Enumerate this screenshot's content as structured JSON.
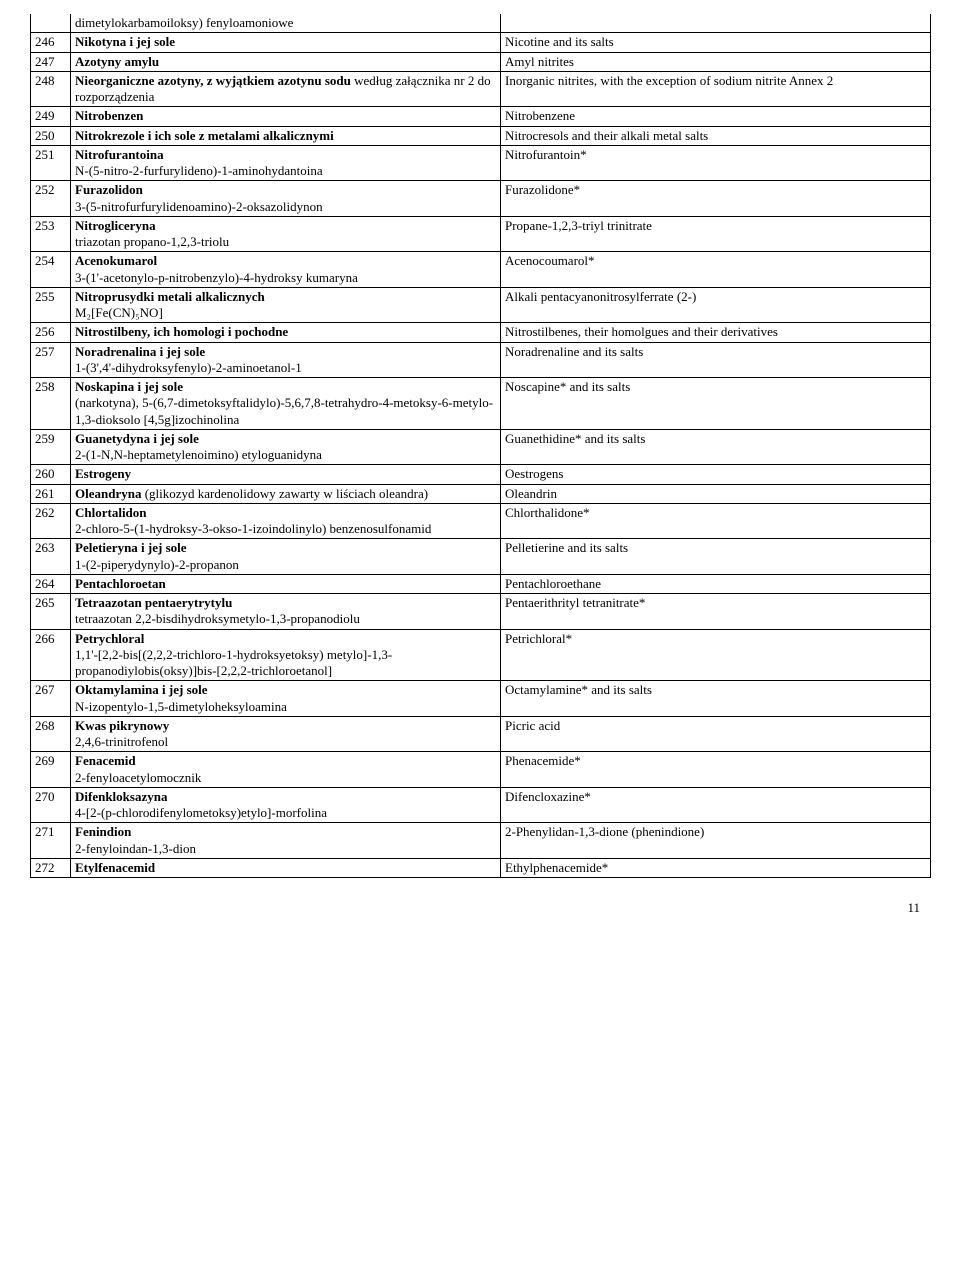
{
  "page_number": "11",
  "rows": [
    {
      "n": "",
      "pl_bold": "",
      "pl_rest": "dimetylokarbamoiloksy) fenyloamoniowe",
      "en": "",
      "no_top": true
    },
    {
      "n": "246",
      "pl_bold": "Nikotyna i jej sole",
      "pl_rest": "",
      "en": "Nicotine and its salts"
    },
    {
      "n": "247",
      "pl_bold": "Azotyny amylu",
      "pl_rest": "",
      "en": "Amyl nitrites"
    },
    {
      "n": "248",
      "pl_bold": "Nieorganiczne azotyny, z wyjątkiem azotynu sodu",
      "pl_rest": " według załącznika nr 2 do rozporządzenia",
      "en": "Inorganic nitrites, with the exception of sodium nitrite Annex 2"
    },
    {
      "n": "249",
      "pl_bold": "Nitrobenzen",
      "pl_rest": "",
      "en": "Nitrobenzene"
    },
    {
      "n": "250",
      "pl_bold": "Nitrokrezole i ich sole z metalami alkalicznymi",
      "pl_rest": "",
      "en": "Nitrocresols and their alkali metal salts"
    },
    {
      "n": "251",
      "pl_bold": "Nitrofurantoina",
      "pl_rest": "\n N-(5-nitro-2-furfurylideno)-1-aminohydantoina",
      "en": "Nitrofurantoin*"
    },
    {
      "n": "252",
      "pl_bold": "Furazolidon",
      "pl_rest": "\n 3-(5-nitrofurfurylidenoamino)-2-oksazolidynon",
      "en": "Furazolidone*"
    },
    {
      "n": "253",
      "pl_bold": "Nitrogliceryna",
      "pl_rest": "\n triazotan propano-1,2,3-triolu",
      "en": "Propane-1,2,3-triyl trinitrate"
    },
    {
      "n": "254",
      "pl_bold": "Acenokumarol",
      "pl_rest": "\n 3-(1'-acetonylo-p-nitrobenzylo)-4-hydroksy kumaryna",
      "en": "Acenocoumarol*"
    },
    {
      "n": "255",
      "pl_bold": "Nitroprusydki metali alkalicznych",
      "pl_rest": "\n M₂[Fe(CN)₅NO]",
      "en": "Alkali pentacyanonitrosylferrate (2-)"
    },
    {
      "n": "256",
      "pl_bold": "Nitrostilbeny, ich homologi i pochodne",
      "pl_rest": "",
      "en": "Nitrostilbenes, their homolgues and their derivatives"
    },
    {
      "n": "257",
      "pl_bold": "Noradrenalina i jej  sole",
      "pl_rest": "\n 1-(3',4'-dihydroksyfenylo)-2-aminoetanol-1",
      "en": "Noradrenaline and its salts"
    },
    {
      "n": "258",
      "pl_bold": "Noskapina i jej sole",
      "pl_rest": "\n (narkotyna), 5-(6,7-dimetoksyftalidylo)-5,6,7,8-tetrahydro-4-metoksy-6-metylo-1,3-dioksolo [4,5g]izochinolina",
      "en": "Noscapine* and its salts"
    },
    {
      "n": "259",
      "pl_bold": "Guanetydyna i jej  sole",
      "pl_rest": "\n 2-(1-N,N-heptametylenoimino) etyloguanidyna",
      "en": "Guanethidine* and its salts"
    },
    {
      "n": "260",
      "pl_bold": "Estrogeny",
      "pl_rest": "",
      "en": "Oestrogens"
    },
    {
      "n": "261",
      "pl_bold": "Oleandryna",
      "pl_rest": " (glikozyd kardenolidowy zawarty w liściach oleandra)",
      "en": "Oleandrin"
    },
    {
      "n": "262",
      "pl_bold": "Chlortalidon",
      "pl_rest": "\n 2-chloro-5-(1-hydroksy-3-okso-1-izoindolinylo) benzenosulfonamid",
      "en": "Chlorthalidone*"
    },
    {
      "n": "263",
      "pl_bold": "Peletieryna i jej  sole",
      "pl_rest": "\n 1-(2-piperydynylo)-2-propanon",
      "en": "Pelletierine and its salts"
    },
    {
      "n": "264",
      "pl_bold": "Pentachloroetan",
      "pl_rest": "",
      "en": "Pentachloroethane"
    },
    {
      "n": "265",
      "pl_bold": "Tetraazotan pentaerytrytylu",
      "pl_rest": "\n tetraazotan 2,2-bisdihydroksymetylo-1,3-propanodiolu",
      "en": "Pentaerithrityl tetranitrate*"
    },
    {
      "n": "266",
      "pl_bold": "Petrychloral",
      "pl_rest": "\n 1,1'-[2,2-bis[(2,2,2-trichloro-1-hydroksyetoksy) metylo]-1,3-propanodiylobis(oksy)]bis-[2,2,2-trichloroetanol]",
      "en": "Petrichloral*"
    },
    {
      "n": "267",
      "pl_bold": "Oktamylamina i jej sole",
      "pl_rest": "\n N-izopentylo-1,5-dimetyloheksyloamina",
      "en": "Octamylamine* and its salts"
    },
    {
      "n": "268",
      "pl_bold": "Kwas pikrynowy",
      "pl_rest": "\n 2,4,6-trinitrofenol",
      "en": "Picric acid"
    },
    {
      "n": "269",
      "pl_bold": "Fenacemid",
      "pl_rest": "\n 2-fenyloacetylomocznik",
      "en": "Phenacemide*"
    },
    {
      "n": "270",
      "pl_bold": "Difenkloksazyna",
      "pl_rest": "\n 4-[2-(p-chlorodifenylometoksy)etylo]-morfolina",
      "en": "Difencloxazine*"
    },
    {
      "n": "271",
      "pl_bold": "Fenindion",
      "pl_rest": "\n 2-fenyloindan-1,3-dion",
      "en": "2-Phenylidan-1,3-dione (phenindione)"
    },
    {
      "n": "272",
      "pl_bold": "Etylfenacemid",
      "pl_rest": "",
      "en": "Ethylphenacemide*"
    }
  ]
}
